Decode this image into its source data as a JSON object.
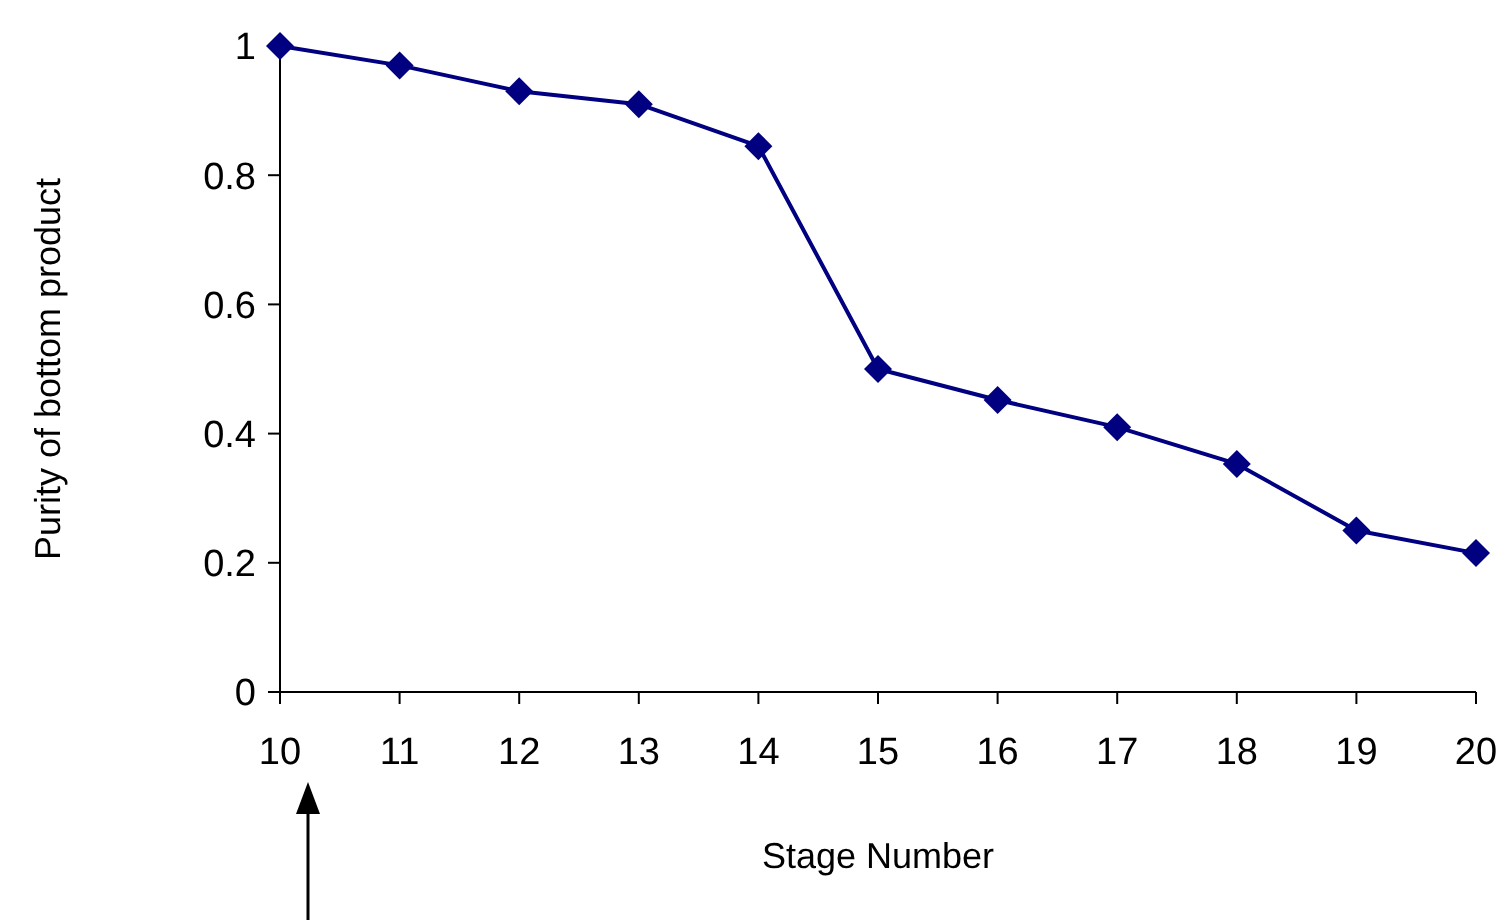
{
  "chart_data": {
    "type": "line",
    "xlabel": "Stage Number",
    "ylabel": "Purity of bottom product",
    "x": [
      10,
      11,
      12,
      13,
      14,
      15,
      16,
      17,
      18,
      19,
      20
    ],
    "series": [
      {
        "color": "#000080",
        "values": [
          1.0,
          0.97,
          0.93,
          0.91,
          0.845,
          0.5,
          0.452,
          0.41,
          0.353,
          0.25,
          0.215
        ]
      }
    ],
    "xlim": [
      10,
      20
    ],
    "xticks": [
      10,
      11,
      12,
      13,
      14,
      15,
      16,
      17,
      18,
      19,
      20
    ],
    "ylim": [
      0,
      1
    ],
    "yticks": [
      0,
      0.2,
      0.4,
      0.6,
      0.8,
      1
    ],
    "marker": "diamond",
    "line_style": "solid",
    "grid": false
  }
}
